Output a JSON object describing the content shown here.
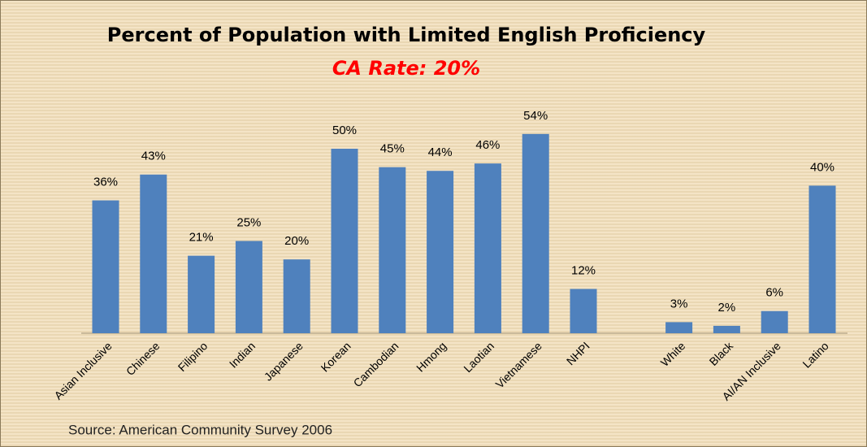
{
  "chart_data": {
    "type": "bar",
    "title": "Percent of Population with Limited English Proficiency",
    "subtitle": "CA Rate: 20%",
    "source": "Source: American Community Survey 2006",
    "categories": [
      "Asian Inclusive",
      "Chinese",
      "Filipino",
      "Indian",
      "Japanese",
      "Korean",
      "Cambodian",
      "Hmong",
      "Laotian",
      "Vietnamese",
      "NHPI",
      null,
      "White",
      "Black",
      "AI/AN Inclusive",
      "Latino"
    ],
    "values": [
      36,
      43,
      21,
      25,
      20,
      50,
      45,
      44,
      46,
      54,
      12,
      null,
      3,
      2,
      6,
      40
    ],
    "value_labels": [
      "36%",
      "43%",
      "21%",
      "25%",
      "20%",
      "50%",
      "45%",
      "44%",
      "46%",
      "54%",
      "12%",
      null,
      "3%",
      "2%",
      "6%",
      "40%"
    ],
    "color": "#4f81bd"
  }
}
